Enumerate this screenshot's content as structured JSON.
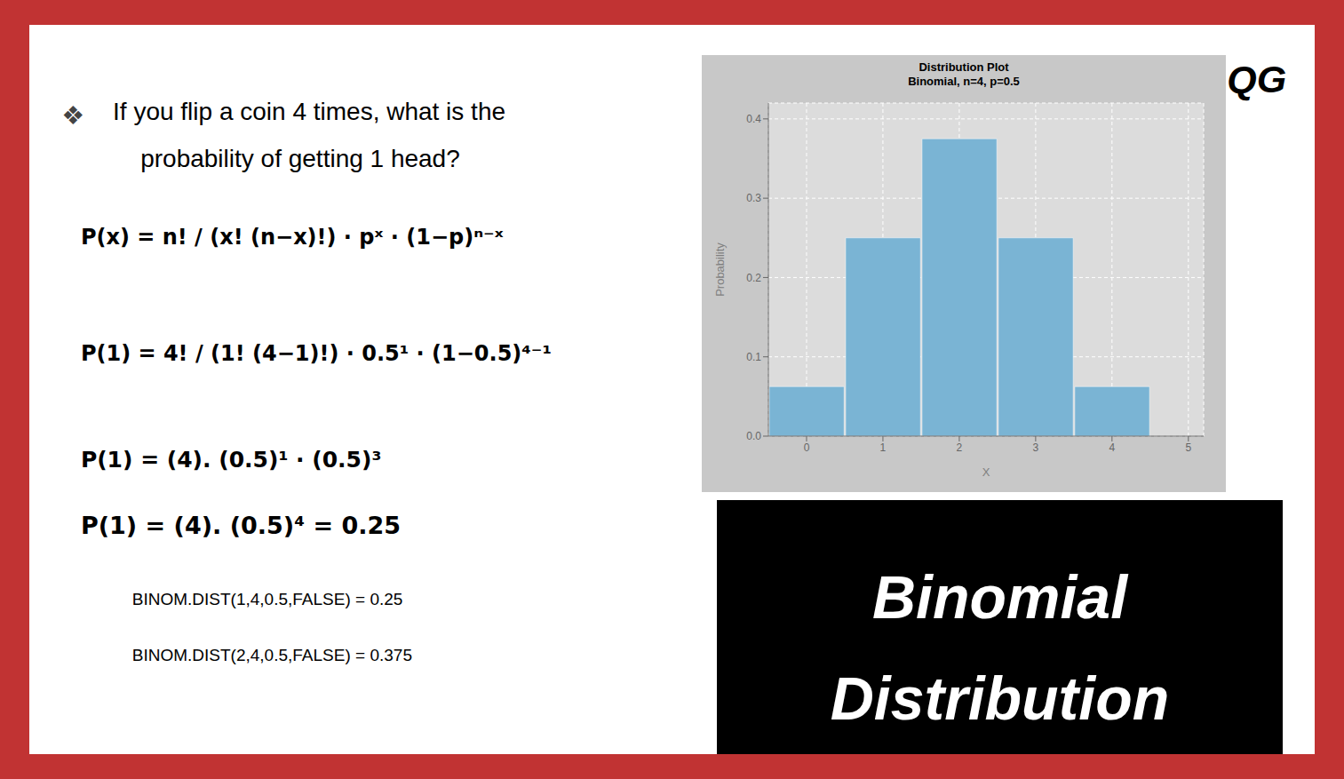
{
  "chart_data": {
    "type": "bar",
    "title": "Distribution Plot",
    "subtitle": "Binomial, n=4, p=0.5",
    "x_label": "X",
    "y_label": "Probability",
    "x": [
      0,
      1,
      2,
      3,
      4
    ],
    "values": [
      0.0625,
      0.25,
      0.375,
      0.25,
      0.0625
    ],
    "color": "#7ab4d4",
    "xlim": [
      -0.5,
      5.2
    ],
    "ylim": [
      0.0,
      0.42
    ],
    "xticks": [
      0,
      1,
      2,
      3,
      4,
      5
    ],
    "yticks": [
      {
        "value": 0.0,
        "label": "0.0"
      },
      0.1,
      0.2,
      0.3,
      0.4
    ],
    "grid": true,
    "annotations": [
      "QG",
      "❖",
      "If you flip a coin 4 times, what is the",
      "    probability of getting 1 head?",
      "P(x) = n! / (x! (n−x)!) · pˣ · (1−p)ⁿ⁻ˣ",
      "P(1) = 4! / (1! (4−1)!) · 0.5¹ · (1−0.5)⁴⁻¹",
      "P(1) = (4). (0.5)¹ · (0.5)³",
      "P(1) = (4). (0.5)⁴ = 0.25",
      "BINOM.DIST(1,4,0.5,FALSE) = 0.25",
      "BINOM.DIST(2,4,0.5,FALSE) = 0.375",
      "Binomial",
      "Distribution"
    ]
  }
}
